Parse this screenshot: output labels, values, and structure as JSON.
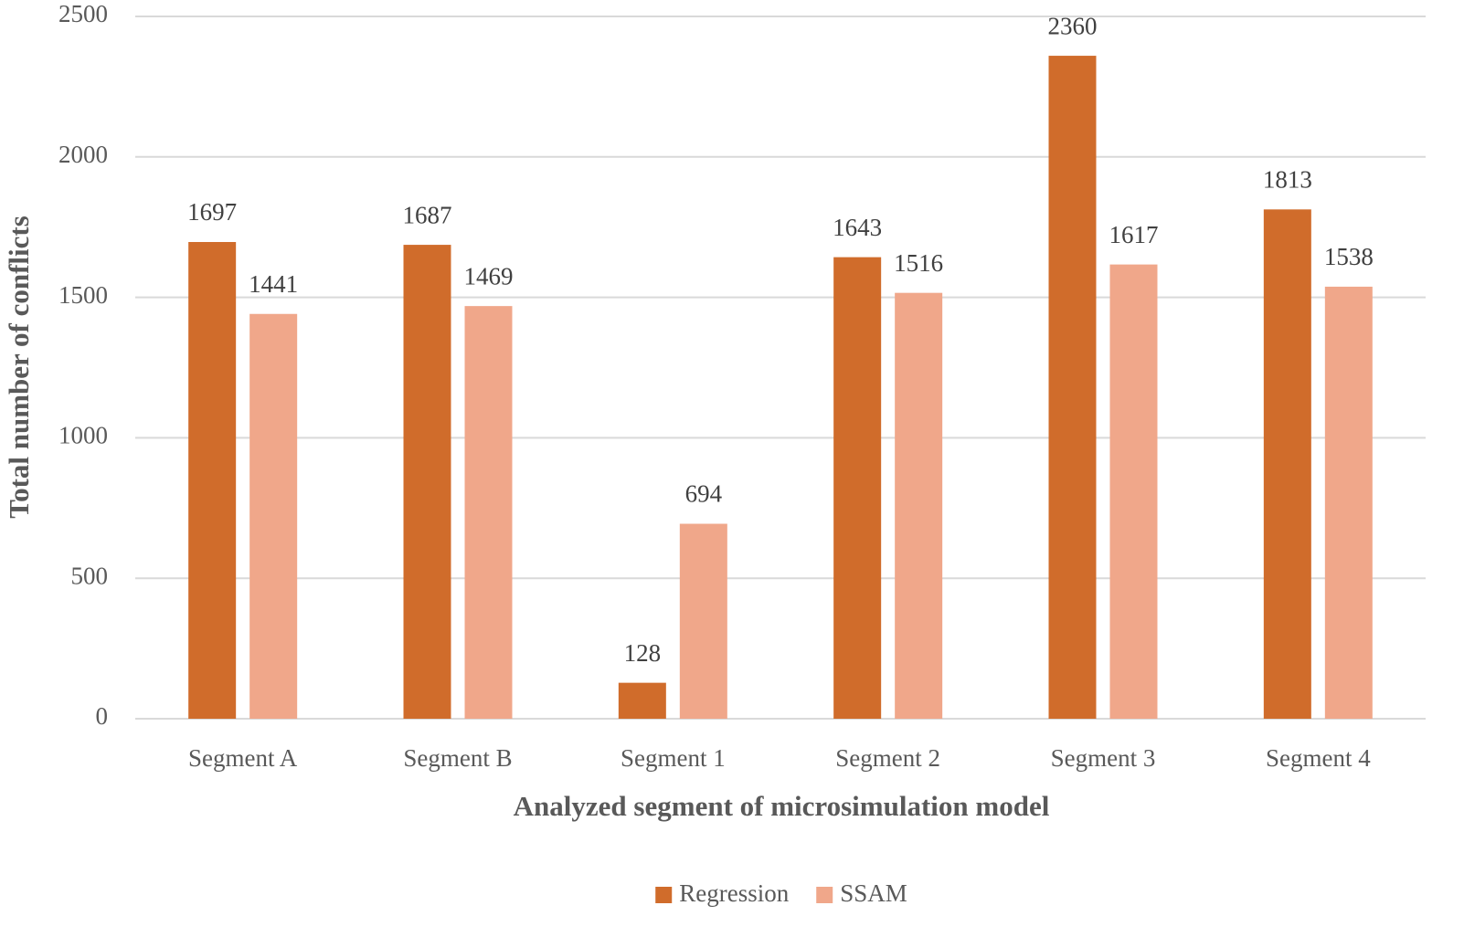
{
  "chart_data": {
    "type": "bar",
    "x_label": "Analyzed segment of microsimulation model",
    "y_label": "Total number of conflicts",
    "categories": [
      "Segment A",
      "Segment B",
      "Segment 1",
      "Segment 2",
      "Segment 3",
      "Segment 4"
    ],
    "series": [
      {
        "name": "Regression",
        "color": "#d06c2b",
        "values": [
          1697,
          1687,
          128,
          1643,
          2360,
          1813
        ]
      },
      {
        "name": "SSAM",
        "color": "#f0a78a",
        "values": [
          1441,
          1469,
          694,
          1516,
          1617,
          1538
        ]
      }
    ],
    "ylim": [
      0,
      2500
    ],
    "yticks": [
      0,
      500,
      1000,
      1500,
      2000,
      2500
    ],
    "grid": true,
    "legend": "bottom"
  }
}
